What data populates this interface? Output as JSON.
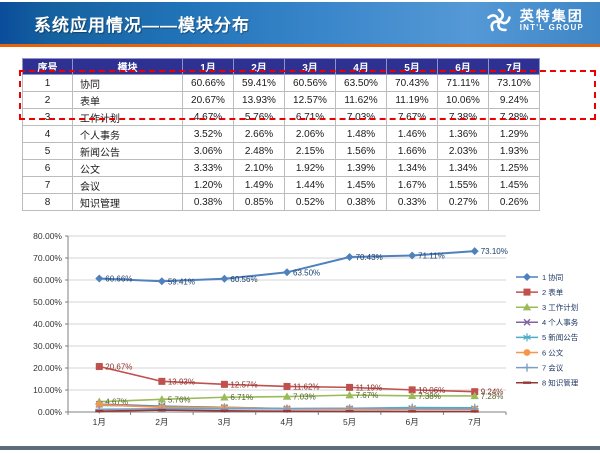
{
  "slide": {
    "title": "系统应用情况——模块分布",
    "logo": {
      "name": "英特集团",
      "subtitle": "INT'L GROUP"
    }
  },
  "table": {
    "headers": [
      "序号",
      "模块",
      "1月",
      "2月",
      "3月",
      "4月",
      "5月",
      "6月",
      "7月"
    ],
    "rows": [
      {
        "index": "1",
        "module": "协同",
        "values": [
          "60.66%",
          "59.41%",
          "60.56%",
          "63.50%",
          "70.43%",
          "71.11%",
          "73.10%"
        ]
      },
      {
        "index": "2",
        "module": "表单",
        "values": [
          "20.67%",
          "13.93%",
          "12.57%",
          "11.62%",
          "11.19%",
          "10.06%",
          "9.24%"
        ]
      },
      {
        "index": "3",
        "module": "工作计划",
        "values": [
          "4.67%",
          "5.76%",
          "6.71%",
          "7.03%",
          "7.67%",
          "7.38%",
          "7.28%"
        ]
      },
      {
        "index": "4",
        "module": "个人事务",
        "values": [
          "3.52%",
          "2.66%",
          "2.06%",
          "1.48%",
          "1.46%",
          "1.36%",
          "1.29%"
        ]
      },
      {
        "index": "5",
        "module": "新闻公告",
        "values": [
          "3.06%",
          "2.48%",
          "2.15%",
          "1.56%",
          "1.66%",
          "2.03%",
          "1.93%"
        ]
      },
      {
        "index": "6",
        "module": "公文",
        "values": [
          "3.33%",
          "2.10%",
          "1.92%",
          "1.39%",
          "1.34%",
          "1.34%",
          "1.25%"
        ]
      },
      {
        "index": "7",
        "module": "会议",
        "values": [
          "1.20%",
          "1.49%",
          "1.44%",
          "1.45%",
          "1.67%",
          "1.55%",
          "1.45%"
        ]
      },
      {
        "index": "8",
        "module": "知识管理",
        "values": [
          "0.38%",
          "0.85%",
          "0.52%",
          "0.38%",
          "0.33%",
          "0.27%",
          "0.26%"
        ]
      }
    ]
  },
  "chart_data": {
    "type": "line",
    "x": [
      "1月",
      "2月",
      "3月",
      "4月",
      "5月",
      "6月",
      "7月"
    ],
    "series": [
      {
        "name": "1 协同",
        "color": "#4f81bd",
        "label_color": "#1c3f6e",
        "marker": "diamond",
        "labeled": true,
        "values": [
          60.66,
          59.41,
          60.56,
          63.5,
          70.43,
          71.11,
          73.1
        ]
      },
      {
        "name": "2 表单",
        "color": "#c0504d",
        "label_color": "#8c2f2c",
        "marker": "square",
        "labeled": true,
        "values": [
          20.67,
          13.93,
          12.57,
          11.62,
          11.19,
          10.06,
          9.24
        ]
      },
      {
        "name": "3 工作计划",
        "color": "#9bbb59",
        "label_color": "#51622a",
        "marker": "triangle",
        "labeled": true,
        "values": [
          4.67,
          5.76,
          6.71,
          7.03,
          7.67,
          7.38,
          7.28
        ]
      },
      {
        "name": "4 个人事务",
        "color": "#8064a2",
        "label_color": "#8064a2",
        "marker": "x",
        "labeled": false,
        "values": [
          3.52,
          2.66,
          2.06,
          1.48,
          1.46,
          1.36,
          1.29
        ]
      },
      {
        "name": "5 新闻公告",
        "color": "#4bacc6",
        "label_color": "#4bacc6",
        "marker": "asterisk",
        "labeled": false,
        "values": [
          3.06,
          2.48,
          2.15,
          1.56,
          1.66,
          2.03,
          1.93
        ]
      },
      {
        "name": "6 公文",
        "color": "#f79646",
        "label_color": "#f79646",
        "marker": "circle",
        "labeled": false,
        "values": [
          3.33,
          2.1,
          1.92,
          1.39,
          1.34,
          1.34,
          1.25
        ]
      },
      {
        "name": "7 会议",
        "color": "#7f9dc4",
        "label_color": "#7f9dc4",
        "marker": "plus",
        "labeled": false,
        "values": [
          1.2,
          1.49,
          1.44,
          1.45,
          1.67,
          1.55,
          1.45
        ]
      },
      {
        "name": "8 知识管理",
        "color": "#953735",
        "label_color": "#953735",
        "marker": "dash",
        "labeled": false,
        "values": [
          0.38,
          0.85,
          0.52,
          0.38,
          0.33,
          0.27,
          0.26
        ]
      }
    ],
    "ylim": [
      0,
      80
    ],
    "ytick_step": 10,
    "ytick_labels": [
      "0.00%",
      "10.00%",
      "20.00%",
      "30.00%",
      "40.00%",
      "50.00%",
      "60.00%",
      "70.00%",
      "80.00%"
    ],
    "grid": true,
    "legend_position": "right"
  },
  "colors": {
    "header_accent": "#e8620b",
    "table_header_bg": "#2e3192",
    "highlight_border": "#ee0000",
    "bottom_bar": "#5d6c7b"
  }
}
